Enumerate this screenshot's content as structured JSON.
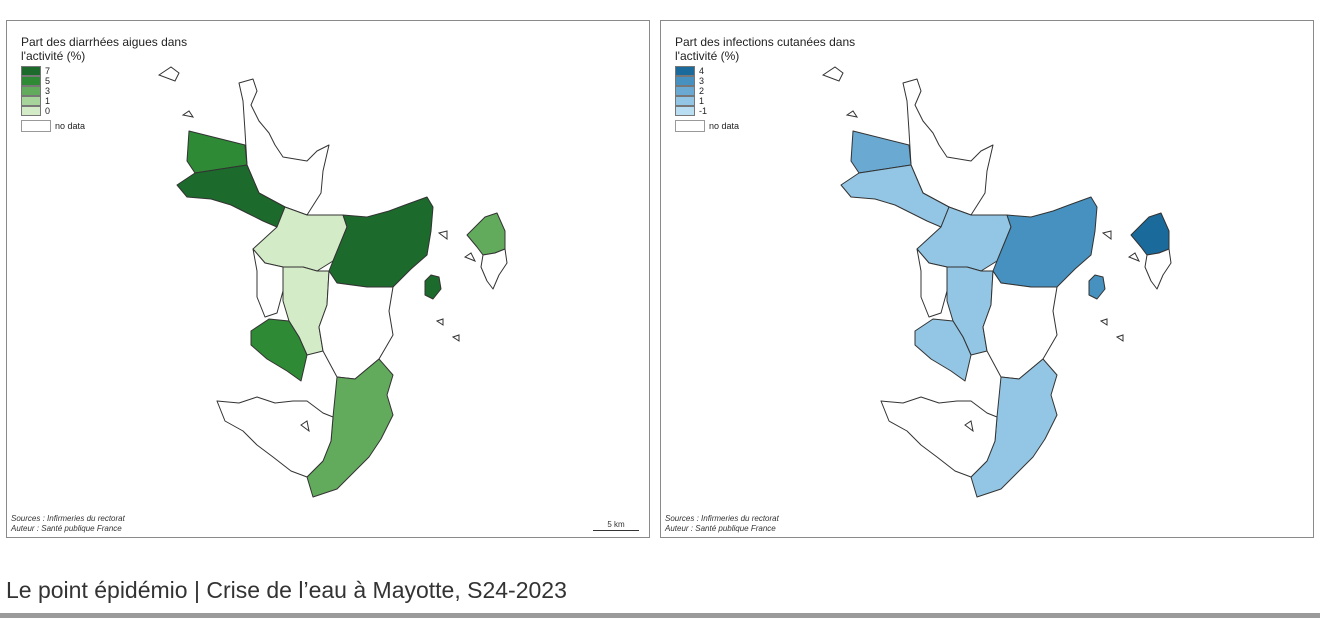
{
  "maps": [
    {
      "legend_title": "Part des diarrhées aigues dans l'activité (%)",
      "legend": [
        {
          "label": "7",
          "color": "#1c6a2c"
        },
        {
          "label": "5",
          "color": "#2f8a36"
        },
        {
          "label": "3",
          "color": "#63ab5c"
        },
        {
          "label": "1",
          "color": "#a6d49a"
        },
        {
          "label": "0",
          "color": "#d3ebc6"
        }
      ],
      "nodata_label": "no data",
      "sources_line1": "Sources : Infirmeries du rectorat",
      "sources_line2": "Auteur : Santé publique France",
      "scale_label": "5 km",
      "region_colors": {
        "nw_top": "#2f8a36",
        "nw_coast": "#1c6a2c",
        "center": "#d3ebc6",
        "east": "#1c6a2c",
        "center_south": "#d3ebc6",
        "southwest": "#2f8a36",
        "south": "#63ab5c",
        "petite_terre": "#63ab5c",
        "islet": "#1c6a2c"
      }
    },
    {
      "legend_title": "Part des infections cutanées dans l'activité (%)",
      "legend": [
        {
          "label": "4",
          "color": "#1a6a9c"
        },
        {
          "label": "3",
          "color": "#4691bf"
        },
        {
          "label": "2",
          "color": "#6aa9d2"
        },
        {
          "label": "1",
          "color": "#93c6e4"
        },
        {
          "label": "-1",
          "color": "#b9def2"
        }
      ],
      "nodata_label": "no data",
      "sources_line1": "Sources : Infirmeries du rectorat",
      "sources_line2": "Auteur : Santé publique France",
      "region_colors": {
        "nw_top": "#6aa9d2",
        "nw_coast": "#93c6e4",
        "center": "#93c6e4",
        "east": "#4691bf",
        "center_south": "#93c6e4",
        "southwest": "#93c6e4",
        "south": "#93c6e4",
        "petite_terre": "#1a6a9c",
        "islet": "#4691bf"
      }
    }
  ],
  "footer_title": "Le point épidémio | Crise de l’eau à Mayotte, S24-2023"
}
